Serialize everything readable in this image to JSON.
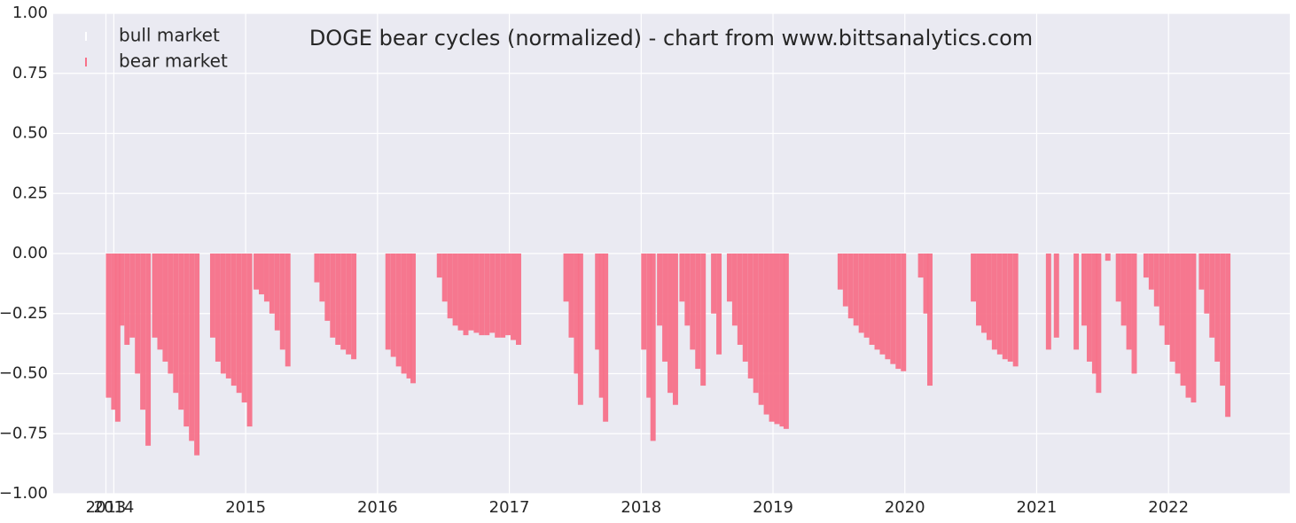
{
  "chart_data": {
    "type": "bar",
    "title": "DOGE bear cycles (normalized)  - chart from www.bittsanalytics.com",
    "legend": "upper left",
    "grid": true,
    "xlim": [
      2013.54,
      2022.92
    ],
    "xticks": [
      {
        "value": 2013.94,
        "label": "2013"
      },
      2014,
      2015,
      2016,
      2017,
      2018,
      2019,
      2020,
      2021,
      2022
    ],
    "ylim": [
      -1,
      1
    ],
    "yticks": [
      {
        "value": -1,
        "label": "−1.00"
      },
      {
        "value": -0.75,
        "label": "−0.75"
      },
      {
        "value": -0.5,
        "label": "−0.50"
      },
      {
        "value": -0.25,
        "label": "−0.25"
      },
      {
        "value": 0,
        "label": "0.00"
      },
      {
        "value": 0.25,
        "label": "0.25"
      },
      {
        "value": 0.5,
        "label": "0.50"
      },
      {
        "value": 0.75,
        "label": "0.75"
      },
      {
        "value": 1,
        "label": "1.00"
      }
    ],
    "series": [
      {
        "name": "bull market",
        "color": "#ffffff",
        "x": [],
        "values": []
      },
      {
        "name": "bear market",
        "color": "#f77189",
        "x": [
          2013.96,
          2014.0,
          2014.03,
          2014.06,
          2014.1,
          2014.14,
          2014.18,
          2014.22,
          2014.26,
          2014.31,
          2014.35,
          2014.39,
          2014.43,
          2014.47,
          2014.51,
          2014.55,
          2014.59,
          2014.63,
          2014.75,
          2014.79,
          2014.83,
          2014.87,
          2014.91,
          2014.95,
          2014.99,
          2015.03,
          2015.08,
          2015.12,
          2015.16,
          2015.2,
          2015.24,
          2015.28,
          2015.32,
          2015.54,
          2015.58,
          2015.62,
          2015.66,
          2015.7,
          2015.74,
          2015.78,
          2015.82,
          2016.08,
          2016.12,
          2016.16,
          2016.2,
          2016.24,
          2016.27,
          2016.47,
          2016.51,
          2016.55,
          2016.59,
          2016.63,
          2016.67,
          2016.71,
          2016.75,
          2016.79,
          2016.83,
          2016.87,
          2016.91,
          2016.95,
          2016.99,
          2017.03,
          2017.07,
          2017.43,
          2017.47,
          2017.51,
          2017.54,
          2017.67,
          2017.7,
          2017.73,
          2018.02,
          2018.06,
          2018.09,
          2018.14,
          2018.18,
          2018.22,
          2018.26,
          2018.31,
          2018.35,
          2018.39,
          2018.43,
          2018.47,
          2018.55,
          2018.59,
          2018.67,
          2018.71,
          2018.75,
          2018.79,
          2018.83,
          2018.87,
          2018.91,
          2018.95,
          2018.99,
          2019.03,
          2019.07,
          2019.1,
          2019.51,
          2019.55,
          2019.59,
          2019.63,
          2019.67,
          2019.71,
          2019.75,
          2019.79,
          2019.83,
          2019.87,
          2019.91,
          2019.95,
          2019.99,
          2020.12,
          2020.16,
          2020.19,
          2020.52,
          2020.56,
          2020.6,
          2020.64,
          2020.68,
          2020.72,
          2020.76,
          2020.8,
          2020.84,
          2021.09,
          2021.15,
          2021.3,
          2021.36,
          2021.4,
          2021.44,
          2021.47,
          2021.54,
          2021.62,
          2021.66,
          2021.7,
          2021.74,
          2021.83,
          2021.87,
          2021.91,
          2021.95,
          2021.99,
          2022.03,
          2022.07,
          2022.11,
          2022.15,
          2022.19,
          2022.25,
          2022.29,
          2022.33,
          2022.37,
          2022.41,
          2022.45
        ],
        "values": [
          -0.6,
          -0.65,
          -0.7,
          -0.3,
          -0.38,
          -0.35,
          -0.5,
          -0.65,
          -0.8,
          -0.35,
          -0.4,
          -0.45,
          -0.5,
          -0.58,
          -0.65,
          -0.72,
          -0.78,
          -0.84,
          -0.35,
          -0.45,
          -0.5,
          -0.52,
          -0.55,
          -0.58,
          -0.62,
          -0.72,
          -0.15,
          -0.17,
          -0.2,
          -0.25,
          -0.32,
          -0.4,
          -0.47,
          -0.12,
          -0.2,
          -0.28,
          -0.35,
          -0.38,
          -0.4,
          -0.42,
          -0.44,
          -0.4,
          -0.43,
          -0.47,
          -0.5,
          -0.52,
          -0.54,
          -0.1,
          -0.2,
          -0.27,
          -0.3,
          -0.32,
          -0.34,
          -0.32,
          -0.33,
          -0.34,
          -0.34,
          -0.33,
          -0.35,
          -0.35,
          -0.34,
          -0.36,
          -0.38,
          -0.2,
          -0.35,
          -0.5,
          -0.63,
          -0.4,
          -0.6,
          -0.7,
          -0.4,
          -0.6,
          -0.78,
          -0.3,
          -0.45,
          -0.58,
          -0.63,
          -0.2,
          -0.3,
          -0.4,
          -0.48,
          -0.55,
          -0.25,
          -0.42,
          -0.2,
          -0.3,
          -0.38,
          -0.45,
          -0.52,
          -0.58,
          -0.63,
          -0.67,
          -0.7,
          -0.71,
          -0.72,
          -0.73,
          -0.15,
          -0.22,
          -0.27,
          -0.3,
          -0.33,
          -0.35,
          -0.38,
          -0.4,
          -0.42,
          -0.44,
          -0.46,
          -0.48,
          -0.49,
          -0.1,
          -0.25,
          -0.55,
          -0.2,
          -0.3,
          -0.33,
          -0.36,
          -0.4,
          -0.42,
          -0.44,
          -0.45,
          -0.47,
          -0.4,
          -0.35,
          -0.4,
          -0.3,
          -0.45,
          -0.5,
          -0.58,
          -0.03,
          -0.2,
          -0.3,
          -0.4,
          -0.5,
          -0.1,
          -0.15,
          -0.22,
          -0.3,
          -0.38,
          -0.45,
          -0.5,
          -0.55,
          -0.6,
          -0.62,
          -0.15,
          -0.25,
          -0.35,
          -0.45,
          -0.55,
          -0.68
        ]
      }
    ]
  }
}
